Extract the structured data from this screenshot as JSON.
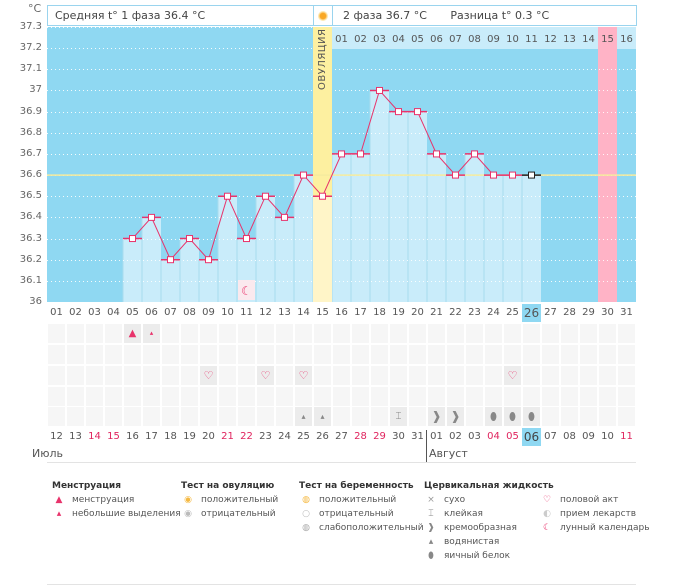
{
  "header": {
    "unit": "°C",
    "phase1_label": "Средняя t° 1 фаза 36.4 °C",
    "phase2_label": "2 фаза 36.7 °C",
    "difference_label": "Разница t° 0.3 °C",
    "ovulation_label": "ОВУЛЯЦИЯ"
  },
  "cycle_days_top": [
    "01",
    "02",
    "03",
    "04",
    "05",
    "06",
    "07",
    "08",
    "09",
    "10",
    "11",
    "12",
    "13",
    "14",
    "15",
    "16"
  ],
  "chart_data": {
    "type": "line",
    "title": "",
    "xlabel": "",
    "ylabel": "°C",
    "ylim": [
      36,
      37.3
    ],
    "y_ticks": [
      "37.3",
      "37.2",
      "37.1",
      "37",
      "36.9",
      "36.8",
      "36.7",
      "36.6",
      "36.5",
      "36.4",
      "36.3",
      "36.2",
      "36.1",
      "36"
    ],
    "x": [
      "01",
      "02",
      "03",
      "04",
      "05",
      "06",
      "07",
      "08",
      "09",
      "10",
      "11",
      "12",
      "13",
      "14",
      "15",
      "16",
      "17",
      "18",
      "19",
      "20",
      "21",
      "22",
      "23",
      "24",
      "25",
      "26",
      "27",
      "28",
      "29",
      "30",
      "31"
    ],
    "series": [
      {
        "name": "Базальная температура",
        "values": [
          null,
          null,
          null,
          null,
          36.3,
          36.4,
          36.2,
          36.3,
          36.2,
          36.5,
          36.3,
          36.5,
          36.4,
          36.6,
          36.5,
          36.7,
          36.7,
          37.0,
          36.9,
          36.9,
          36.7,
          36.6,
          36.7,
          36.6,
          36.6,
          36.6,
          null,
          null,
          null,
          null,
          null
        ]
      }
    ],
    "coverline": 36.6,
    "ovulation_day": "15",
    "highlight_day": "30",
    "today": "26",
    "grid": true,
    "colors": {
      "background": "#8fd8f2",
      "bars": "#c9ecfa",
      "line": "#e8336b",
      "ovulation": "#fdf0a0",
      "coverline": "#f5eb9e",
      "highlight": "#ffb3c6"
    }
  },
  "dates": [
    "12",
    "13",
    "14",
    "15",
    "16",
    "17",
    "18",
    "19",
    "20",
    "21",
    "22",
    "23",
    "24",
    "25",
    "26",
    "27",
    "28",
    "29",
    "30",
    "31",
    "01",
    "02",
    "03",
    "04",
    "05",
    "06",
    "07",
    "08",
    "09",
    "10",
    "11"
  ],
  "weekend_dates": [
    "14",
    "15",
    "21",
    "22",
    "28",
    "29",
    "04",
    "05",
    "11"
  ],
  "months": {
    "first": "Июль",
    "second": "Август"
  },
  "markers": {
    "menstruation": {
      "05": "heavy",
      "06": "light"
    },
    "intercourse": [
      "09",
      "12",
      "14",
      "25"
    ],
    "moon": [
      "11"
    ],
    "fluid": {
      "14": "watery",
      "15": "watery",
      "19": "sticky",
      "21": "creamy",
      "22": "creamy",
      "24": "eggwhite",
      "25": "eggwhite",
      "26": "eggwhite"
    }
  },
  "legend": {
    "menstruation": {
      "title": "Менструация",
      "items": [
        {
          "icon": "heavy-drop-icon",
          "label": "менструация"
        },
        {
          "icon": "small-drop-icon",
          "label": "небольшие выделения"
        }
      ]
    },
    "ovulation_test": {
      "title": "Тест на овуляцию",
      "items": [
        {
          "icon": "positive-test-icon",
          "label": "положительный"
        },
        {
          "icon": "negative-test-icon",
          "label": "отрицательный"
        }
      ]
    },
    "pregnancy_test": {
      "title": "Тест на беременность",
      "items": [
        {
          "icon": "pregnancy-positive-icon",
          "label": "положительный"
        },
        {
          "icon": "pregnancy-negative-icon",
          "label": "отрицательный"
        },
        {
          "icon": "pregnancy-weak-icon",
          "label": "слабоположительный"
        }
      ]
    },
    "cervical_fluid": {
      "title": "Цервикальная жидкость",
      "items": [
        {
          "icon": "dry-icon",
          "label": "сухо"
        },
        {
          "icon": "sticky-icon",
          "label": "клейкая"
        },
        {
          "icon": "creamy-icon",
          "label": "кремообразная"
        },
        {
          "icon": "watery-icon",
          "label": "водянистая"
        },
        {
          "icon": "eggwhite-icon",
          "label": "яичный белок"
        }
      ]
    },
    "other": {
      "items": [
        {
          "icon": "heart-icon",
          "label": "половой акт"
        },
        {
          "icon": "pill-icon",
          "label": "прием лекарств"
        },
        {
          "icon": "moon-icon",
          "label": "лунный календарь"
        }
      ]
    }
  }
}
